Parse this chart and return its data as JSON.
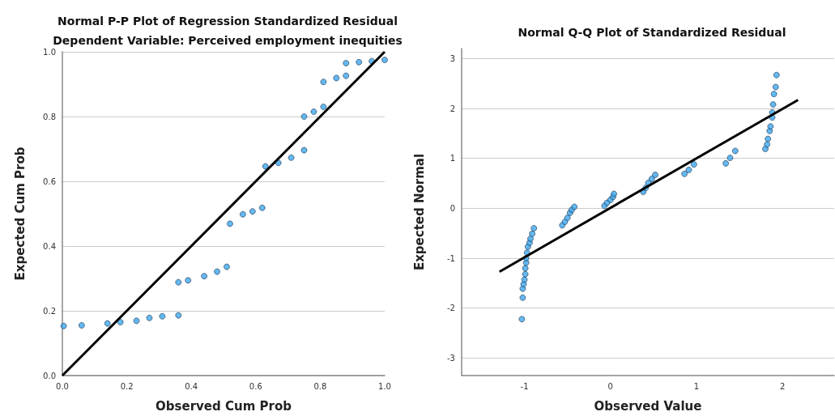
{
  "chart_data": [
    {
      "type": "scatter",
      "title": "Normal P-P Plot of Regression Standardized Residual",
      "subtitle": "Dependent Variable: Perceived employment inequities",
      "xlabel": "Observed Cum Prob",
      "ylabel": "Expected Cum Prob",
      "xlim": [
        0,
        1
      ],
      "ylim": [
        0,
        1
      ],
      "xticks": [
        {
          "value": 0,
          "label": "0.0"
        },
        {
          "value": 0.2,
          "label": "0.2"
        },
        {
          "value": 0.4,
          "label": "0.4"
        },
        {
          "value": 0.6,
          "label": "0.6"
        },
        {
          "value": 0.8,
          "label": "0.8"
        },
        {
          "value": 1,
          "label": "1.0"
        }
      ],
      "yticks": [
        {
          "value": 0,
          "label": "0.0"
        },
        {
          "value": 0.2,
          "label": "0.2"
        },
        {
          "value": 0.4,
          "label": "0.4"
        },
        {
          "value": 0.6,
          "label": "0.6"
        },
        {
          "value": 0.8,
          "label": "0.8"
        },
        {
          "value": 1,
          "label": "1.0"
        }
      ],
      "grid": "y",
      "marker": "circle",
      "series": [
        {
          "color": "#3fa6ec",
          "x": [
            0.004,
            0.06,
            0.14,
            0.18,
            0.23,
            0.27,
            0.31,
            0.36,
            0.36,
            0.39,
            0.44,
            0.48,
            0.51,
            0.52,
            0.56,
            0.59,
            0.62,
            0.63,
            0.67,
            0.71,
            0.75,
            0.75,
            0.78,
            0.81,
            0.81,
            0.85,
            0.88,
            0.88,
            0.92,
            0.96,
            1.0
          ],
          "values": [
            0.153,
            0.155,
            0.161,
            0.165,
            0.169,
            0.178,
            0.183,
            0.186,
            0.288,
            0.294,
            0.307,
            0.321,
            0.336,
            0.469,
            0.498,
            0.507,
            0.518,
            0.646,
            0.657,
            0.673,
            0.696,
            0.8,
            0.815,
            0.83,
            0.907,
            0.919,
            0.926,
            0.965,
            0.968,
            0.971,
            0.975
          ]
        },
        {
          "type": "line",
          "color": "#000000",
          "marker": "none",
          "x": [
            0,
            1
          ],
          "values": [
            0,
            1
          ]
        }
      ]
    },
    {
      "type": "scatter",
      "title": "Normal Q-Q Plot of Standardized Residual",
      "xlabel": "Observed Value",
      "ylabel": "Expected Normal",
      "xlim": [
        -1.73,
        2.6
      ],
      "ylim": [
        -3.35,
        3.2
      ],
      "xticks": [
        -1,
        0,
        1,
        2
      ],
      "yticks": [
        -3,
        -2,
        -1,
        0,
        1,
        2,
        3
      ],
      "grid": "y",
      "marker": "circle",
      "series": [
        {
          "color": "#3fa6ec",
          "x": [
            -1.03,
            -1.02,
            -1.02,
            -1.01,
            -1.0,
            -0.99,
            -0.99,
            -0.98,
            -0.98,
            -0.97,
            -0.96,
            -0.94,
            -0.93,
            -0.91,
            -0.89,
            -0.56,
            -0.53,
            -0.5,
            -0.47,
            -0.45,
            -0.42,
            -0.07,
            -0.04,
            0,
            0.03,
            0.04,
            0.38,
            0.41,
            0.44,
            0.48,
            0.52,
            0.86,
            0.91,
            0.97,
            1.34,
            1.39,
            1.45,
            1.8,
            1.82,
            1.83,
            1.85,
            1.86,
            1.88,
            1.88,
            1.89,
            1.9,
            1.92,
            1.93
          ],
          "values": [
            -2.22,
            -1.79,
            -1.61,
            -1.52,
            -1.43,
            -1.32,
            -1.2,
            -1.09,
            -1.0,
            -0.89,
            -0.77,
            -0.69,
            -0.61,
            -0.51,
            -0.4,
            -0.34,
            -0.27,
            -0.19,
            -0.09,
            -0.03,
            0.03,
            0.05,
            0.11,
            0.17,
            0.23,
            0.29,
            0.33,
            0.41,
            0.51,
            0.59,
            0.67,
            0.69,
            0.77,
            0.88,
            0.9,
            1.01,
            1.15,
            1.19,
            1.28,
            1.39,
            1.55,
            1.64,
            1.82,
            1.92,
            2.08,
            2.29,
            2.43,
            2.67
          ]
        },
        {
          "type": "line",
          "color": "#000000",
          "marker": "none",
          "x": [
            -1.29,
            2.18
          ],
          "values": [
            -1.27,
            2.17
          ]
        }
      ]
    }
  ]
}
